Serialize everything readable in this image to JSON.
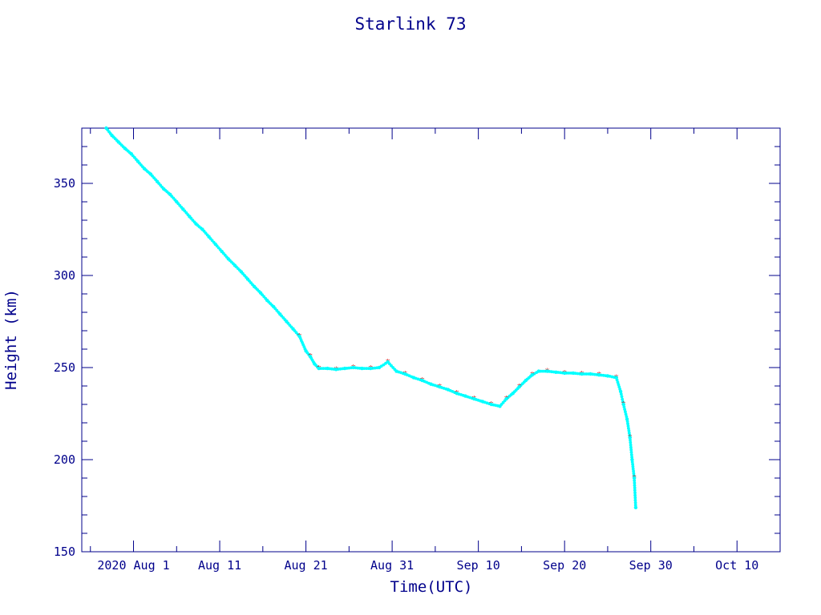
{
  "chart_data": {
    "type": "line",
    "title": "Starlink 73",
    "xlabel": "Time(UTC)",
    "ylabel": "Height (km)",
    "ylim": [
      150,
      380
    ],
    "xlim": [
      "2020-07-26",
      "2020-10-15"
    ],
    "yticks": [
      150,
      200,
      250,
      300,
      350
    ],
    "xticks": [
      {
        "date": "2020-08-01",
        "label": "2020 Aug  1"
      },
      {
        "date": "2020-08-11",
        "label": "Aug 11"
      },
      {
        "date": "2020-08-21",
        "label": "Aug 21"
      },
      {
        "date": "2020-08-31",
        "label": "Aug 31"
      },
      {
        "date": "2020-09-10",
        "label": "Sep 10"
      },
      {
        "date": "2020-09-20",
        "label": "Sep 20"
      },
      {
        "date": "2020-09-30",
        "label": "Sep 30"
      },
      {
        "date": "2020-10-10",
        "label": "Oct 10"
      }
    ],
    "grid": false,
    "colors": {
      "axis": "#00008b",
      "line": "#000000",
      "marker_primary": "#00ffff",
      "marker_secondary": "#cc0000"
    },
    "series": [
      {
        "points": [
          [
            "2020-07-28T20:00",
            380
          ],
          [
            "2020-07-29T12:00",
            376
          ],
          [
            "2020-07-30T06:00",
            372.5
          ],
          [
            "2020-07-31T00:00",
            369
          ],
          [
            "2020-07-31T18:00",
            366
          ],
          [
            "2020-08-01T12:00",
            362
          ],
          [
            "2020-08-02T06:00",
            358
          ],
          [
            "2020-08-03T00:00",
            355
          ],
          [
            "2020-08-03T18:00",
            351
          ],
          [
            "2020-08-04T12:00",
            347
          ],
          [
            "2020-08-05T06:00",
            344
          ],
          [
            "2020-08-06T00:00",
            340
          ],
          [
            "2020-08-06T18:00",
            336
          ],
          [
            "2020-08-07T12:00",
            332
          ],
          [
            "2020-08-08T06:00",
            328
          ],
          [
            "2020-08-09T00:00",
            325
          ],
          [
            "2020-08-09T18:00",
            321
          ],
          [
            "2020-08-10T12:00",
            317
          ],
          [
            "2020-08-11T06:00",
            313
          ],
          [
            "2020-08-12T00:00",
            309
          ],
          [
            "2020-08-12T18:00",
            305.5
          ],
          [
            "2020-08-13T12:00",
            302
          ],
          [
            "2020-08-14T06:00",
            298
          ],
          [
            "2020-08-15T00:00",
            294
          ],
          [
            "2020-08-15T18:00",
            290.5
          ],
          [
            "2020-08-16T12:00",
            286.5
          ],
          [
            "2020-08-17T06:00",
            283
          ],
          [
            "2020-08-18T00:00",
            279
          ],
          [
            "2020-08-18T18:00",
            275
          ],
          [
            "2020-08-19T12:00",
            271
          ],
          [
            "2020-08-20T06:00",
            267
          ],
          [
            "2020-08-21T00:00",
            259
          ],
          [
            "2020-08-21T12:00",
            256
          ],
          [
            "2020-08-22T00:00",
            252
          ],
          [
            "2020-08-22T12:00",
            249.5
          ],
          [
            "2020-08-23T12:00",
            249.5
          ],
          [
            "2020-08-24T12:00",
            249
          ],
          [
            "2020-08-25T12:00",
            249.5
          ],
          [
            "2020-08-26T12:00",
            250
          ],
          [
            "2020-08-27T12:00",
            249.5
          ],
          [
            "2020-08-28T12:00",
            249.5
          ],
          [
            "2020-08-29T12:00",
            250
          ],
          [
            "2020-08-30T12:00",
            253
          ],
          [
            "2020-08-31T12:00",
            248
          ],
          [
            "2020-09-01T12:00",
            246.5
          ],
          [
            "2020-09-02T12:00",
            244.5
          ],
          [
            "2020-09-03T12:00",
            243
          ],
          [
            "2020-09-04T12:00",
            241
          ],
          [
            "2020-09-05T12:00",
            239.5
          ],
          [
            "2020-09-06T12:00",
            238
          ],
          [
            "2020-09-07T12:00",
            236
          ],
          [
            "2020-09-08T12:00",
            234.5
          ],
          [
            "2020-09-09T12:00",
            233
          ],
          [
            "2020-09-10T12:00",
            231.5
          ],
          [
            "2020-09-11T12:00",
            230
          ],
          [
            "2020-09-12T12:00",
            229
          ],
          [
            "2020-09-13T06:00",
            233
          ],
          [
            "2020-09-14T00:00",
            236
          ],
          [
            "2020-09-14T18:00",
            239.5
          ],
          [
            "2020-09-15T12:00",
            243
          ],
          [
            "2020-09-16T06:00",
            246
          ],
          [
            "2020-09-17T00:00",
            248
          ],
          [
            "2020-09-18T00:00",
            248
          ],
          [
            "2020-09-19T00:00",
            247.5
          ],
          [
            "2020-09-20T00:00",
            247
          ],
          [
            "2020-09-21T00:00",
            247
          ],
          [
            "2020-09-22T00:00",
            246.5
          ],
          [
            "2020-09-23T00:00",
            246.5
          ],
          [
            "2020-09-24T00:00",
            246
          ],
          [
            "2020-09-25T00:00",
            245.5
          ],
          [
            "2020-09-26T00:00",
            244.5
          ],
          [
            "2020-09-26T12:00",
            237
          ],
          [
            "2020-09-26T20:00",
            230
          ],
          [
            "2020-09-27T06:00",
            222
          ],
          [
            "2020-09-27T14:00",
            212
          ],
          [
            "2020-09-27T20:00",
            200
          ],
          [
            "2020-09-28T02:00",
            190
          ],
          [
            "2020-09-28T06:00",
            174
          ]
        ]
      }
    ]
  }
}
